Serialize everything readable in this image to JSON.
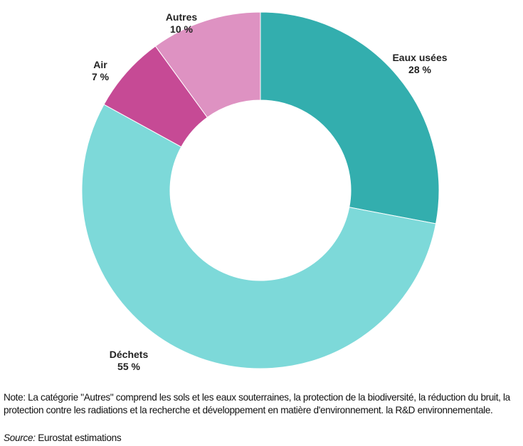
{
  "chart_data": {
    "type": "pie",
    "donut": true,
    "start": "12 o'clock, clockwise",
    "categories": [
      "Eaux usées",
      "Déchets",
      "Air",
      "Autres"
    ],
    "values": [
      28,
      55,
      7,
      10
    ],
    "value_labels": [
      "28 %",
      "55 %",
      "7 %",
      "10 %"
    ],
    "colors": [
      "#33AEAE",
      "#7DD9D9",
      "#C64A95",
      "#DE92C2"
    ],
    "legend": "none"
  },
  "note": "Note: La catégorie \"Autres\" comprend les sols et les eaux souterraines, la protection de la biodiversité, la réduction du bruit, la protection contre les radiations et la recherche et développement en matière d'environnement. la R&D environnementale.",
  "source_label": "Source:",
  "source_text": " Eurostat estimations"
}
